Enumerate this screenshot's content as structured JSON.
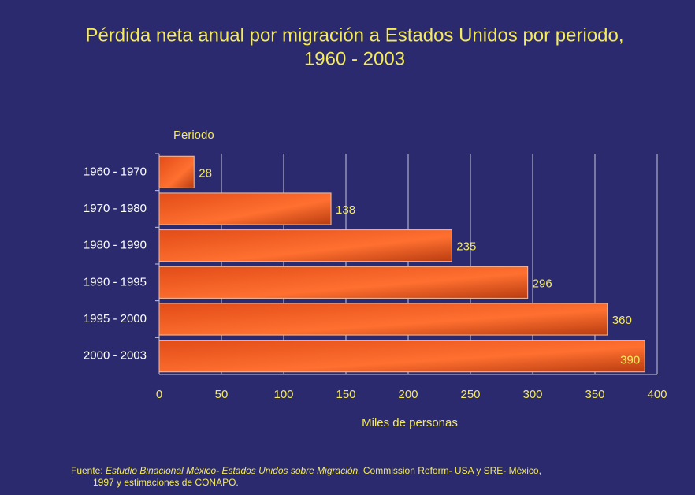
{
  "chart_data": {
    "type": "hbar",
    "title": "Pérdida neta anual por migración a Estados Unidos por periodo,",
    "subtitle": "1960 - 2003",
    "y_label": "Periodo",
    "x_label": "Miles de personas",
    "categories": [
      "1960 - 1970",
      "1970 - 1980",
      "1980 - 1990",
      "1990 - 1995",
      "1995 - 2000",
      "2000 - 2003"
    ],
    "values": [
      28,
      138,
      235,
      296,
      360,
      390
    ],
    "color": "#f0601e",
    "xlim": [
      0,
      400
    ],
    "xticks": [
      0,
      50,
      100,
      150,
      200,
      250,
      300,
      350,
      400
    ],
    "grid": true,
    "source_label": "Fuente:",
    "source_title": "Estudio Binacional México- Estados Unidos sobre Migración,",
    "source_text": "Commission Reform- USA y SRE- México,",
    "source_text_2": "1997 y estimaciones de CONAPO."
  }
}
